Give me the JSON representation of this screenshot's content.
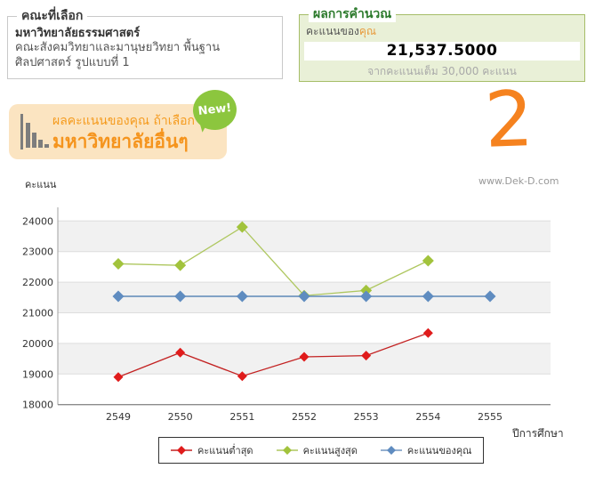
{
  "faculty_box": {
    "title": "คณะที่เลือก",
    "university": "มหาวิทยาลัยธรรมศาสตร์",
    "faculty": "คณะสังคมวิทยาและมานุษยวิทยา พื้นฐานศิลปศาสตร์ รูปแบบที่ 1"
  },
  "result_box": {
    "title": "ผลการคำนวณ",
    "score_label_prefix": "คะแนนของ",
    "score_label_highlight": "คุณ",
    "score_value": "21,537.5000",
    "full_score_note": "จากคะแนนเต็ม 30,000 คะแนน"
  },
  "promo_badge": {
    "line1": "ผลคะแนนของคุณ ถ้าเลือก",
    "line2": "มหาวิทยาลัยอื่นๆ",
    "new_label": "New!",
    "icon": "bar-chart-icon"
  },
  "step_indicator": {
    "value": "2"
  },
  "watermark": {
    "text": "www.Dek-D.com"
  },
  "colors": {
    "accent_orange": "#f5941d",
    "new_badge_green": "#8cc63e",
    "result_border_green": "#a6bd68",
    "result_bg_green": "#e9f0d7",
    "result_title_green": "#2c7a2c",
    "highlight_orange": "#e89a3c",
    "band_gray": "#f1f1f1"
  },
  "chart_data": {
    "type": "line",
    "title": "",
    "ylabel": "คะแนน",
    "xlabel": "ปีการศึกษา",
    "categories": [
      "2549",
      "2550",
      "2551",
      "2552",
      "2553",
      "2554",
      "2555"
    ],
    "y_ticks": [
      18000,
      19000,
      20000,
      21000,
      22000,
      23000,
      24000
    ],
    "ylim": [
      18000,
      24450
    ],
    "grid": "horizontal-bands",
    "legend_position": "bottom",
    "series": [
      {
        "key": "min-score",
        "name": "คะแนนต่ำสุด",
        "color": "#e01b1b",
        "line_color": "#c32222",
        "values": [
          18900,
          19700,
          18930,
          19560,
          19600,
          20340,
          null
        ]
      },
      {
        "key": "max-score",
        "name": "คะแนนสูงสุด",
        "color": "#a2c33c",
        "line_color": "#aec75f",
        "values": [
          22600,
          22550,
          23800,
          21560,
          21730,
          22700,
          null
        ]
      },
      {
        "key": "your-score",
        "name": "คะแนนของคุณ",
        "color": "#5f8cc0",
        "line_color": "#7296c0",
        "values": [
          21537.5,
          21537.5,
          21537.5,
          21537.5,
          21537.5,
          21537.5,
          21537.5
        ]
      }
    ]
  }
}
